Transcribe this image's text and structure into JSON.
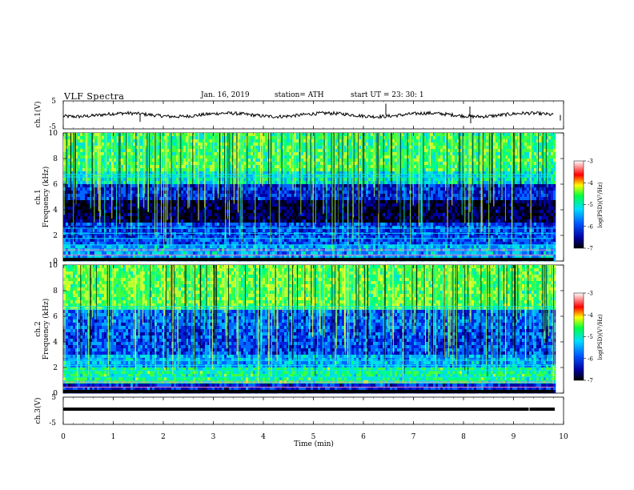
{
  "header": {
    "title": "VLF  Spectra",
    "date": "Jan. 16, 2019",
    "station": "station= ATH",
    "start": "start  UT  =   23: 30: 1"
  },
  "chart_data": [
    {
      "type": "line",
      "panel": "ch1-waveform",
      "ylabel": "ch.1(V)",
      "ylim": [
        -5,
        5
      ],
      "y_ticks": [
        "5",
        "-5"
      ],
      "xlim": [
        0,
        10
      ],
      "line_color": "#000000",
      "level": 0
    },
    {
      "type": "heatmap",
      "panel": "ch1-spectrogram",
      "ylabel_top": "ch.1",
      "ylabel": "Frequency  (kHz)",
      "ylim": [
        0,
        10
      ],
      "y_ticks": [
        "0",
        "2",
        "4",
        "6",
        "8",
        "10"
      ],
      "xlim": [
        0,
        9.8
      ],
      "colorbar": {
        "label": "log(PSD)(V²/Hz)",
        "ticks": [
          "-3",
          "-4",
          "-5",
          "-6",
          "-7"
        ],
        "range": [
          -7,
          -3
        ]
      }
    },
    {
      "type": "heatmap",
      "panel": "ch2-spectrogram",
      "ylabel_top": "ch.2",
      "ylabel": "Frequency  (kHz)",
      "ylim": [
        0,
        10
      ],
      "y_ticks": [
        "0",
        "2",
        "4",
        "6",
        "8",
        "10"
      ],
      "xlim": [
        0,
        9.8
      ],
      "colorbar": {
        "label": "log(PSD)(V²/Hz)",
        "ticks": [
          "-3",
          "-4",
          "-5",
          "-6",
          "-7"
        ],
        "range": [
          -7,
          -3
        ]
      }
    },
    {
      "type": "line",
      "panel": "ch3-waveform",
      "ylabel": "ch.3(V)",
      "ylim": [
        -5,
        5
      ],
      "y_ticks": [
        "5",
        "-5"
      ],
      "xlim": [
        0,
        9.8
      ],
      "level": 0.5
    },
    {
      "type": "axis",
      "panel": "time-axis",
      "xlabel": "Time  (min)",
      "x_ticks": [
        "0",
        "1",
        "2",
        "3",
        "4",
        "5",
        "6",
        "7",
        "8",
        "9",
        "10"
      ],
      "xlim": [
        0,
        10
      ]
    }
  ]
}
